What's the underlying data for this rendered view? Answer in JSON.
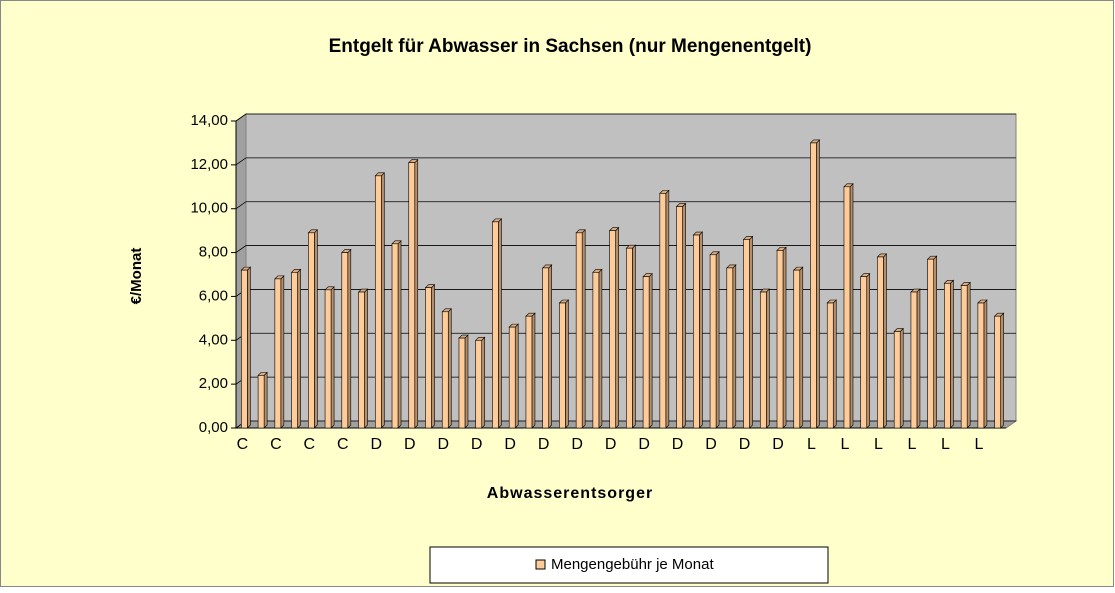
{
  "chart_data": {
    "type": "bar",
    "title": "Entgelt für Abwasser in Sachsen (nur Mengenentgelt)",
    "x_label": "Abwasserentsorger",
    "y_label": "€/Monat",
    "categories": [
      "C",
      null,
      "C",
      null,
      "C",
      null,
      "C",
      null,
      "D",
      null,
      "D",
      null,
      "D",
      null,
      "D",
      null,
      "D",
      null,
      "D",
      null,
      "D",
      null,
      "D",
      null,
      "D",
      null,
      "D",
      null,
      "D",
      null,
      "D",
      null,
      "D",
      null,
      "L",
      null,
      "L",
      null,
      "L",
      null,
      "L",
      null,
      "L",
      null,
      "L",
      null
    ],
    "series": [
      {
        "name": "Mengengebühr je Monat",
        "color": "#ffcc99",
        "values": [
          7.2,
          2.4,
          6.8,
          7.1,
          8.9,
          6.3,
          8.0,
          6.2,
          11.5,
          8.4,
          12.1,
          6.4,
          5.3,
          4.1,
          4.0,
          9.4,
          4.6,
          5.1,
          7.3,
          5.7,
          8.9,
          7.1,
          9.0,
          8.2,
          6.9,
          10.7,
          10.1,
          8.8,
          7.9,
          7.3,
          8.6,
          6.2,
          8.1,
          7.2,
          13.0,
          5.7,
          11.0,
          6.9,
          7.8,
          4.4,
          6.2,
          7.7,
          6.6,
          6.5,
          5.7,
          5.1
        ]
      }
    ],
    "ylim": [
      0,
      14
    ],
    "yticks": [
      {
        "value": 0,
        "label": "0,00"
      },
      {
        "value": 2,
        "label": "2,00"
      },
      {
        "value": 4,
        "label": "4,00"
      },
      {
        "value": 6,
        "label": "6,00"
      },
      {
        "value": 8,
        "label": "8,00"
      },
      {
        "value": 10,
        "label": "10,00"
      },
      {
        "value": 12,
        "label": "12,00"
      },
      {
        "value": 14,
        "label": "14,00"
      }
    ],
    "grid": true,
    "legend": "bottom"
  }
}
